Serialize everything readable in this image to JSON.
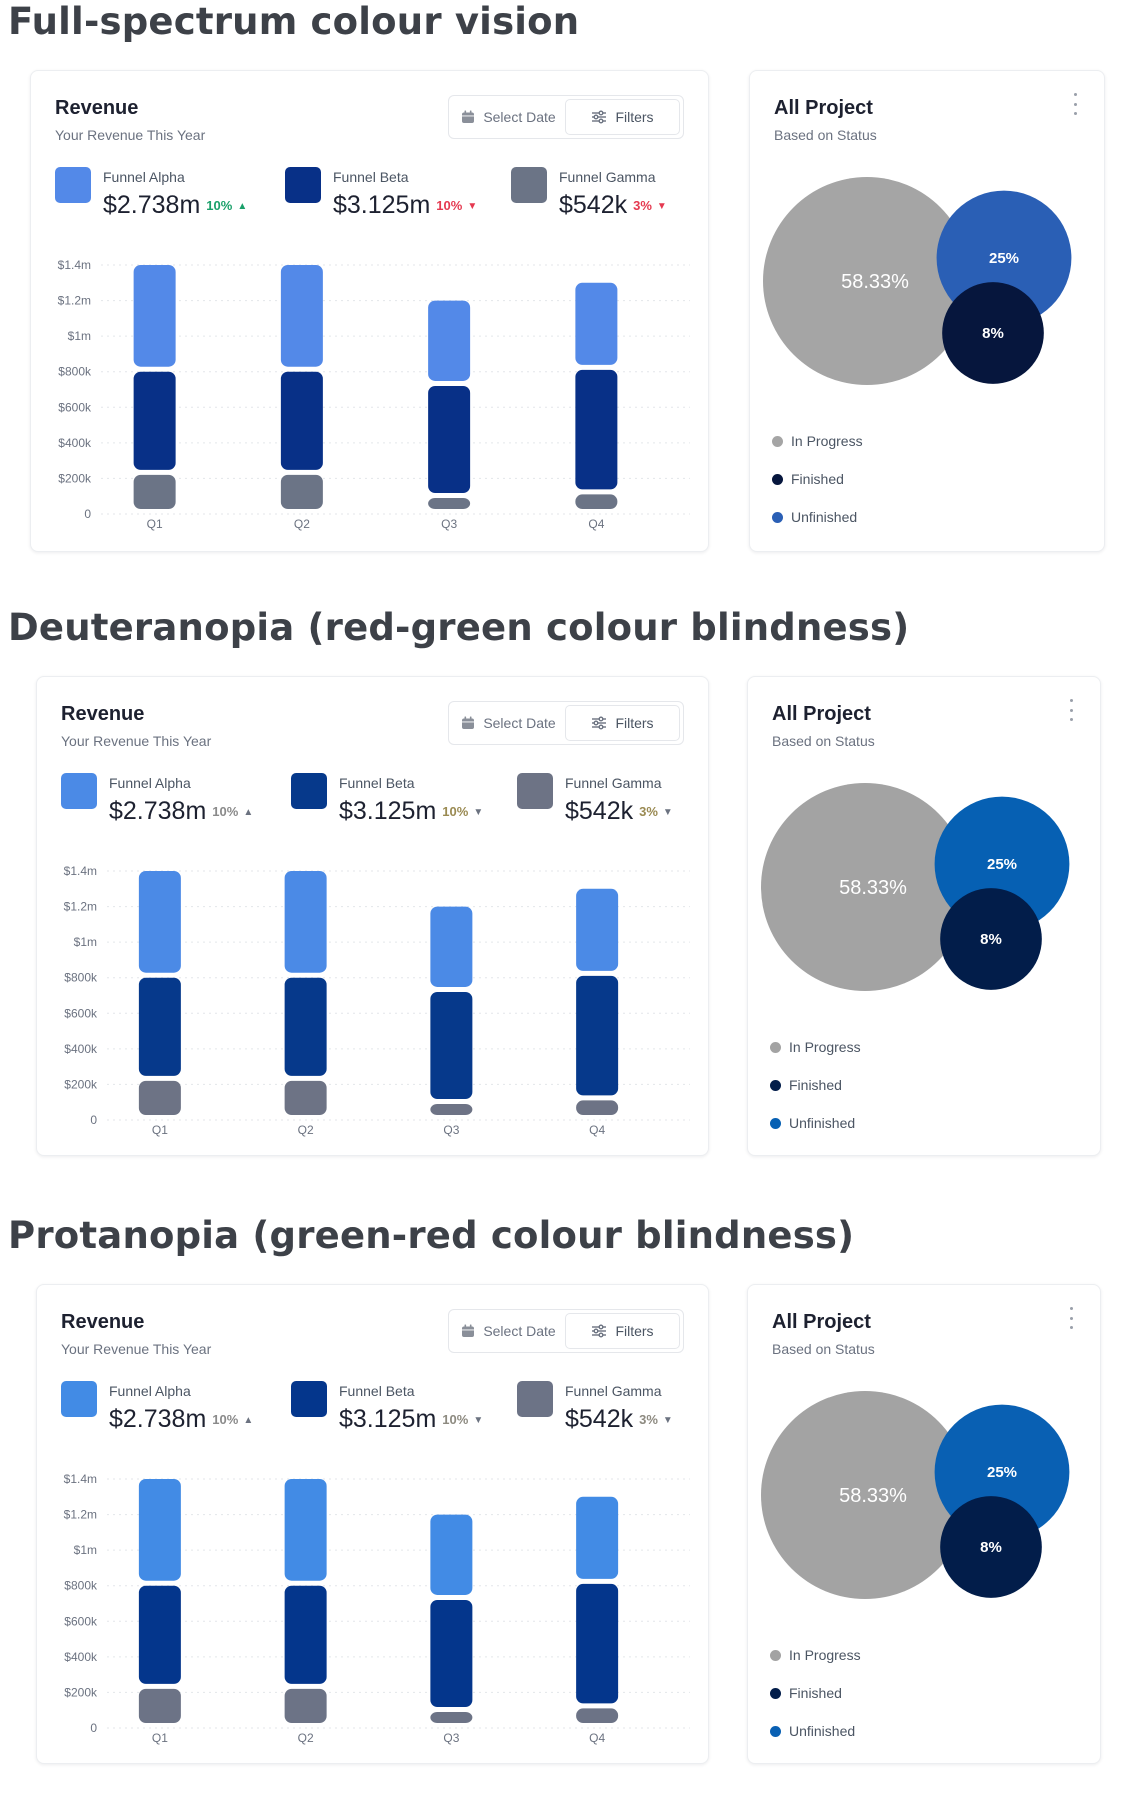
{
  "sections": [
    {
      "title": "Full-spectrum colour vision",
      "colors": {
        "alpha": "#5389e8",
        "beta": "#083087",
        "gamma": "#6b7486",
        "up": "#1aa06a",
        "down": "#e53950",
        "in_progress": "#a5a5a5",
        "finished": "#06163d",
        "unfinished": "#2a5fb5"
      }
    },
    {
      "title": "Deuteranopia (red-green colour blindness)",
      "colors": {
        "alpha": "#4b8ae6",
        "beta": "#06398b",
        "gamma": "#6d7385",
        "up": "#8a8a8a",
        "down": "#9a8a52",
        "in_progress": "#a3a3a3",
        "finished": "#021d4a",
        "unfinished": "#0660b3"
      }
    },
    {
      "title": "Protanopia (green-red colour blindness)",
      "colors": {
        "alpha": "#428be5",
        "beta": "#04368c",
        "gamma": "#6c7386",
        "up": "#8a8a8a",
        "down": "#8d8a80",
        "in_progress": "#a3a3a3",
        "finished": "#021d4a",
        "unfinished": "#0960b3"
      }
    }
  ],
  "revenue_card": {
    "title": "Revenue",
    "subtitle": "Your Revenue This Year",
    "select_date_label": "Select Date",
    "filters_label": "Filters",
    "calendar_icon": "calendar-icon",
    "filters_icon": "sliders-icon",
    "legend": [
      {
        "name": "Funnel Alpha",
        "value": "$2.738m",
        "change": "10%",
        "direction": "up",
        "arrow": "▲"
      },
      {
        "name": "Funnel Beta",
        "value": "$3.125m",
        "change": "10%",
        "direction": "down",
        "arrow": "▼"
      },
      {
        "name": "Funnel Gamma",
        "value": "$542k",
        "change": "3%",
        "direction": "down",
        "arrow": "▼"
      }
    ]
  },
  "project_card": {
    "title": "All Project",
    "subtitle": "Based on Status",
    "menu_icon": "kebab-menu-icon",
    "statuses": [
      "In Progress",
      "Finished",
      "Unfinished"
    ]
  },
  "chart_data": {
    "revenue": {
      "type": "bar",
      "stacked": true,
      "categories": [
        "Q1",
        "Q2",
        "Q3",
        "Q4"
      ],
      "series": [
        {
          "name": "Funnel Gamma",
          "values": [
            220000,
            220000,
            90000,
            110000
          ]
        },
        {
          "name": "Funnel Beta",
          "values": [
            580000,
            580000,
            630000,
            700000
          ]
        },
        {
          "name": "Funnel Alpha",
          "values": [
            600000,
            600000,
            480000,
            490000
          ]
        }
      ],
      "ylim": [
        0,
        1400000
      ],
      "yticks": [
        0,
        200000,
        400000,
        600000,
        800000,
        1000000,
        1200000,
        1400000
      ],
      "ytick_labels": [
        "0",
        "$200k",
        "$400k",
        "$600k",
        "$800k",
        "$1m",
        "$1.2m",
        "$1.4m"
      ],
      "grid": true
    },
    "project_status": {
      "type": "bubble",
      "items": [
        {
          "status": "In Progress",
          "value": 58.33,
          "label": "58.33%"
        },
        {
          "status": "Unfinished",
          "value": 25,
          "label": "25%"
        },
        {
          "status": "Finished",
          "value": 8,
          "label": "8%"
        }
      ]
    }
  }
}
